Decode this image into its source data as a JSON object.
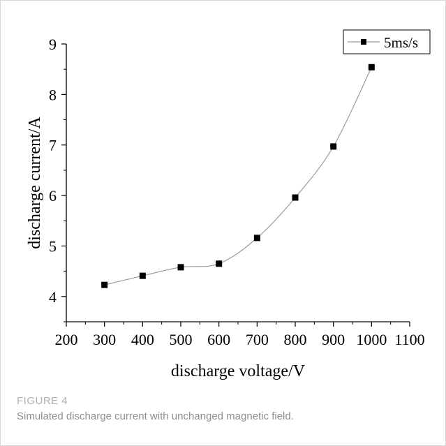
{
  "figure": {
    "label": "FIGURE 4",
    "caption": "Simulated discharge current with unchanged magnetic field."
  },
  "chart_data": {
    "type": "line",
    "xlabel": "discharge voltage/V",
    "ylabel": "discharge current/A",
    "xlim": [
      200,
      1100
    ],
    "ylim": [
      3.5,
      9
    ],
    "xticks": [
      "200",
      "300",
      "400",
      "500",
      "600",
      "700",
      "800",
      "900",
      "1000",
      "1100"
    ],
    "yticks": [
      "4",
      "5",
      "6",
      "7",
      "8",
      "9"
    ],
    "grid": false,
    "legend_position": "top-right",
    "series": [
      {
        "name": "5ms/s",
        "marker": "square",
        "color": "#000000",
        "line_color": "#9a9a9a",
        "x": [
          300,
          400,
          500,
          600,
          700,
          800,
          900,
          1000
        ],
        "y": [
          4.23,
          4.41,
          4.58,
          4.65,
          5.16,
          5.96,
          6.97,
          8.54
        ]
      }
    ]
  }
}
